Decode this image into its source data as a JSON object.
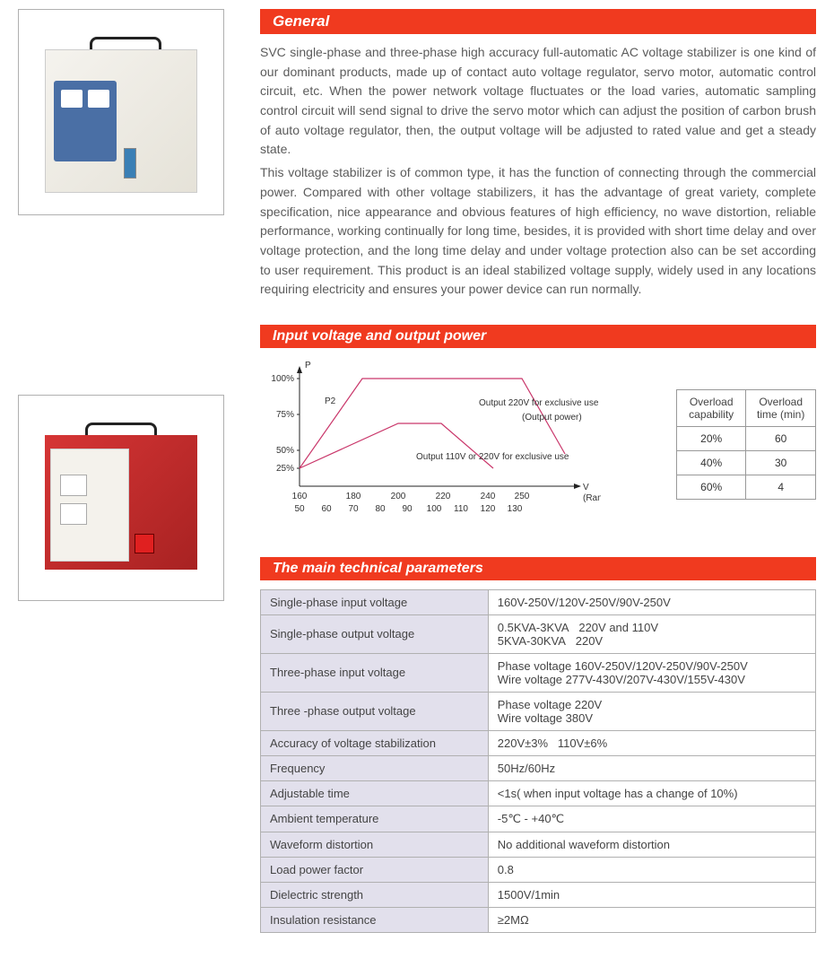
{
  "sections": {
    "general": {
      "title": "General",
      "para1": "SVC single-phase and three-phase high accuracy full-automatic AC voltage stabilizer is one kind of our dominant products, made up of contact auto voltage regulator, servo motor, automatic control circuit, etc. When the power network voltage fluctuates or the load varies, automatic sampling control circuit will send signal to drive the servo motor which can adjust the position of carbon brush of auto voltage regulator, then, the output voltage will be adjusted to rated value and get a steady state.",
      "para2": "This voltage stabilizer is of common type, it has the function of connecting through the commercial power. Compared with other voltage stabilizers, it has the advantage of great variety, complete specification, nice appearance and obvious features of high efficiency, no wave distortion, reliable performance, working continually for long time, besides, it is provided with short time delay and over voltage protection, and the long time delay and under voltage protection also can be set according to user requirement. This product is an ideal stabilized voltage supply, widely used in any locations requiring electricity and ensures your power device can run normally."
    },
    "io": {
      "title": "Input voltage and output power"
    },
    "params": {
      "title": "The main technical parameters"
    }
  },
  "chart": {
    "y_label": "P",
    "x_label": "V",
    "x_sub": "(Range of input voltage)",
    "p2_label": "P2",
    "note_upper": "Output 220V for exclusive use",
    "note_upper2": "(Output power)",
    "note_lower": "Output 110V or 220V for exclusive use",
    "y_ticks": [
      "100%",
      "75%",
      "50%",
      "25%"
    ],
    "x_ticks_top": [
      "160",
      "180",
      "200",
      "220",
      "240",
      "250"
    ],
    "x_ticks_bot": [
      "50",
      "60",
      "70",
      "80",
      "90",
      "100",
      "110",
      "120",
      "130"
    ],
    "curve_color": "#c9366a",
    "axis_color": "#222222",
    "upper_curve": [
      [
        0,
        110
      ],
      [
        70,
        10
      ],
      [
        248,
        10
      ],
      [
        296,
        94
      ]
    ],
    "lower_curve": [
      [
        0,
        110
      ],
      [
        110,
        60
      ],
      [
        158,
        60
      ],
      [
        216,
        110
      ]
    ]
  },
  "overload": {
    "col1": "Overload capability",
    "col2": "Overload time (min)",
    "rows": [
      [
        "20%",
        "60"
      ],
      [
        "40%",
        "30"
      ],
      [
        "60%",
        "4"
      ]
    ]
  },
  "params_rows": [
    [
      "Single-phase input voltage",
      "160V-250V/120V-250V/90V-250V"
    ],
    [
      "Single-phase output voltage",
      "0.5KVA-3KVA   220V and 110V\n5KVA-30KVA   220V"
    ],
    [
      "Three-phase input voltage",
      "Phase voltage 160V-250V/120V-250V/90V-250V\nWire voltage 277V-430V/207V-430V/155V-430V"
    ],
    [
      "Three -phase output voltage",
      "Phase voltage 220V\nWire voltage 380V"
    ],
    [
      "Accuracy of voltage stabilization",
      "220V±3%   110V±6%"
    ],
    [
      "Frequency",
      "50Hz/60Hz"
    ],
    [
      "Adjustable time",
      "<1s( when input voltage has a change of 10%)"
    ],
    [
      "Ambient temperature",
      "-5℃ - +40℃"
    ],
    [
      "Waveform distortion",
      "No additional waveform distortion"
    ],
    [
      "Load power factor",
      "0.8"
    ],
    [
      "Dielectric strength",
      "1500V/1min"
    ],
    [
      "Insulation resistance",
      "≥2MΩ"
    ]
  ]
}
